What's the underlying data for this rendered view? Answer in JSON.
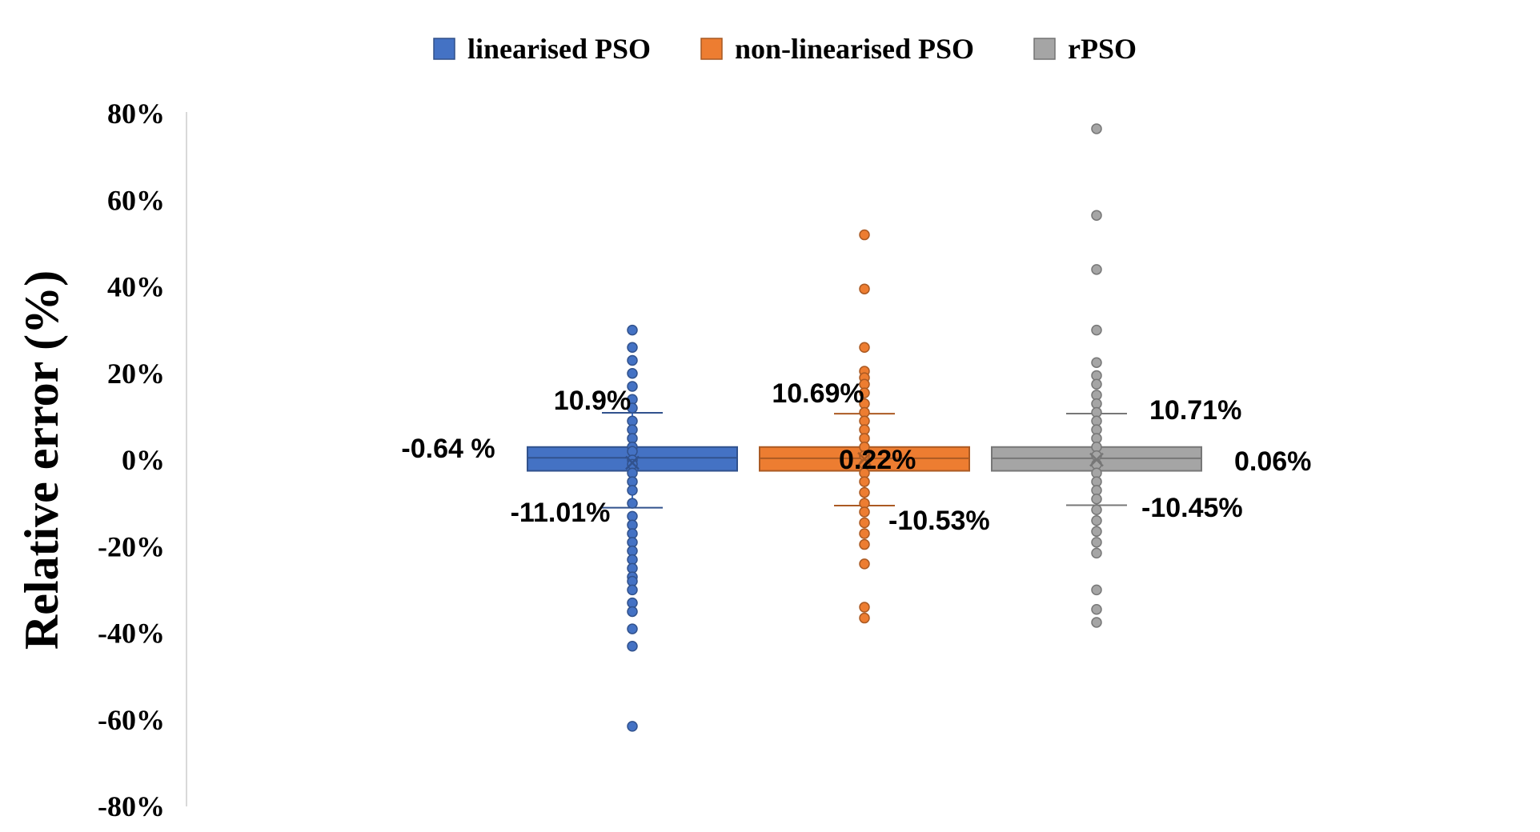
{
  "chart_data": {
    "type": "boxplot",
    "ylabel": "Relative error (%)",
    "ylim": [
      -80,
      80
    ],
    "ytick_step": 20,
    "ytick_suffix": "%",
    "grid": false,
    "legend_position": "top",
    "series": [
      {
        "name": "linearised PSO",
        "color": "#4472C4",
        "whisker_high": 10.9,
        "whisker_low": -11.01,
        "q3": 3.0,
        "median": 0.5,
        "q1": -2.5,
        "mean": -0.64,
        "annotations": {
          "upper": "10.9%",
          "lower": "-11.01%",
          "mean": "-0.64 %"
        },
        "outliers": [
          30,
          26,
          23,
          20,
          17,
          14,
          12,
          9,
          7,
          5,
          3,
          2,
          0,
          -1,
          -3,
          -5,
          -7,
          -10,
          -13,
          -15,
          -17,
          -19,
          -21,
          -23,
          -25,
          -27,
          -28,
          -30,
          -33,
          -35,
          -39,
          -43,
          -61.5
        ]
      },
      {
        "name": "non-linearised PSO",
        "color": "#ED7D31",
        "whisker_high": 10.69,
        "whisker_low": -10.53,
        "q3": 3.0,
        "median": 0.4,
        "q1": -2.5,
        "mean": 0.22,
        "annotations": {
          "upper": "10.69%",
          "lower": "-10.53%",
          "mean": "0.22%"
        },
        "outliers": [
          52,
          39.5,
          26,
          20.5,
          19,
          17.5,
          15.5,
          13,
          11,
          9,
          7,
          5,
          3,
          1,
          -1,
          -3,
          -5,
          -7.5,
          -10,
          -12,
          -14.5,
          -17,
          -19.5,
          -24,
          -34,
          -36.5
        ]
      },
      {
        "name": "rPSO",
        "color": "#A5A5A5",
        "whisker_high": 10.71,
        "whisker_low": -10.45,
        "q3": 3.0,
        "median": 0.4,
        "q1": -2.5,
        "mean": 0.06,
        "annotations": {
          "upper": "10.71%",
          "lower": "-10.45%",
          "mean": "0.06%"
        },
        "outliers": [
          76.5,
          56.5,
          44,
          30,
          22.5,
          19.5,
          17.5,
          15,
          13,
          11,
          9,
          7,
          5,
          3,
          1,
          -1,
          -3,
          -5,
          -7,
          -9,
          -11.5,
          -14,
          -16.5,
          -19,
          -21.5,
          -30,
          -34.5,
          -37.5
        ]
      }
    ]
  }
}
